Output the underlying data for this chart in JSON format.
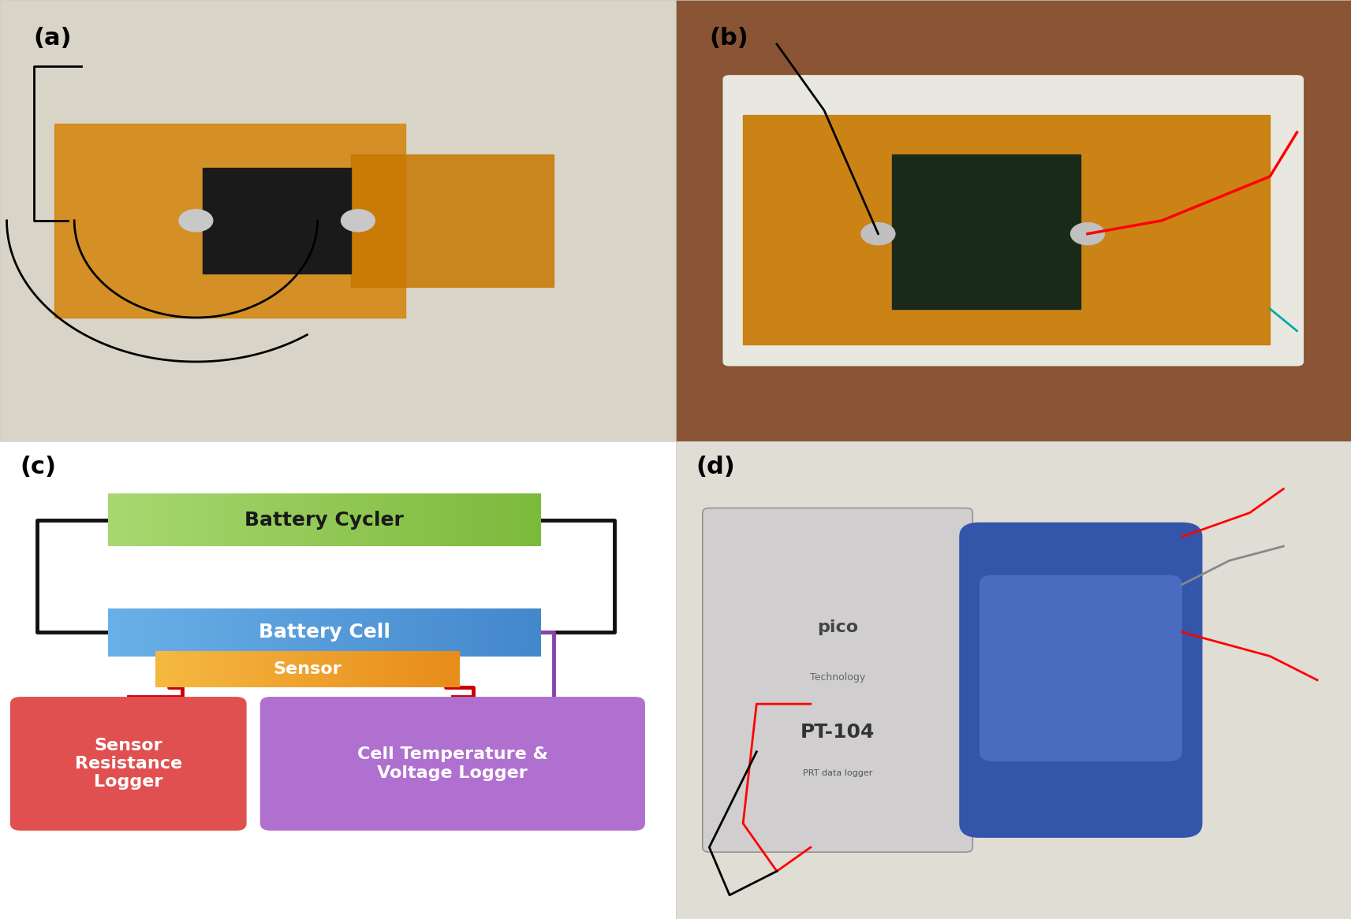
{
  "panel_labels": [
    "(a)",
    "(b)",
    "(c)",
    "(d)"
  ],
  "panel_label_fontsize": 22,
  "panel_label_color": "#000000",
  "background_color": "#ffffff",
  "diagram": {
    "battery_cycler": {
      "label": "Battery Cycler",
      "color_left": "#a8d870",
      "color_right": "#7cba3c",
      "text_color": "#1a1a1a",
      "fontsize": 18
    },
    "battery_cell": {
      "label": "Battery Cell",
      "color_left": "#6ab0e8",
      "color_right": "#4488cc",
      "text_color": "#ffffff",
      "fontsize": 18
    },
    "sensor": {
      "label": "Sensor",
      "color_left": "#f5b942",
      "color_right": "#e88c1a",
      "text_color": "#ffffff",
      "fontsize": 16
    },
    "sensor_resistance": {
      "label": "Sensor\nResistance\nLogger",
      "color": "#e05050",
      "text_color": "#ffffff",
      "fontsize": 16
    },
    "cell_temp": {
      "label": "Cell Temperature &\nVoltage Logger",
      "color": "#b070d0",
      "text_color": "#ffffff",
      "fontsize": 16
    },
    "black_wire_color": "#111111",
    "red_wire_color": "#cc0000",
    "purple_wire_color": "#8844aa",
    "wire_linewidth": 3.5
  }
}
